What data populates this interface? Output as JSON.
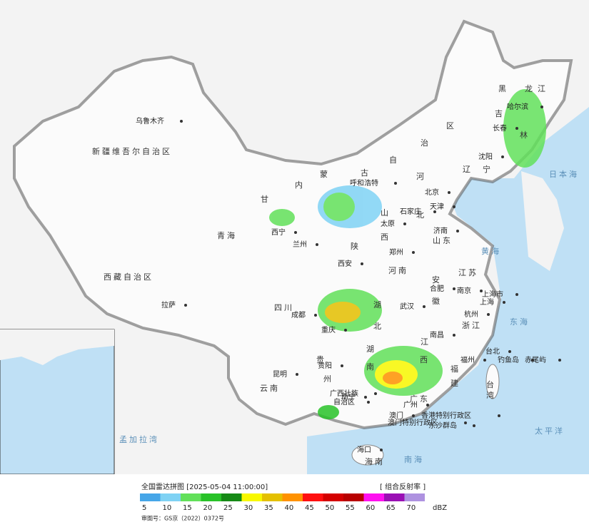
{
  "map": {
    "labels": [
      "乌鲁木齐",
      "新疆维吾尔自治区",
      "西藏自治区",
      "拉萨",
      "青海",
      "西宁",
      "兰州",
      "甘",
      "内",
      "蒙",
      "古",
      "自",
      "治",
      "区",
      "呼和浩特",
      "北京",
      "天津",
      "石家庄",
      "太原",
      "山",
      "西",
      "济南",
      "山东",
      "郑州",
      "河南",
      "西安",
      "陕",
      "四川",
      "成都",
      "重庆",
      "湖",
      "北",
      "武汉",
      "安",
      "徽",
      "合肥",
      "南京",
      "江苏",
      "上海市",
      "上海",
      "杭州",
      "浙江",
      "南昌",
      "江",
      "西",
      "福州",
      "福",
      "建",
      "湖",
      "南",
      "贵阳",
      "贵",
      "州",
      "云南",
      "昆明",
      "广西壮族",
      "自治区",
      "南宁",
      "广东",
      "广州",
      "澳门",
      "香港特别行政区",
      "澳门特别行政区",
      "东沙群岛",
      "钓鱼岛",
      "赤尾屿",
      "台北",
      "台",
      "湾",
      "海口",
      "海南",
      "黑",
      "龙",
      "江",
      "哈尔滨",
      "长春",
      "吉",
      "林",
      "沈阳",
      "辽",
      "宁",
      "河",
      "北",
      "日本海",
      "黄海",
      "东海",
      "太平洋",
      "南海",
      "孟加拉湾"
    ]
  },
  "legend": {
    "title": "全国雷达拼图 [2025-05-04 11:00:00]",
    "product": "[ 组合反射率 ]",
    "unit": "dBZ",
    "ticks": [
      5,
      10,
      15,
      20,
      25,
      30,
      35,
      40,
      45,
      50,
      55,
      60,
      65,
      70
    ],
    "colors": [
      "#46a6e8",
      "#7fd2f4",
      "#62e05a",
      "#28c228",
      "#168a16",
      "#f8f800",
      "#e4c000",
      "#ff9200",
      "#ff1010",
      "#d40000",
      "#b80000",
      "#ff10f0",
      "#9a10b4",
      "#ae92e0"
    ]
  },
  "footer": {
    "approval": "审图号：GS京（2022）0372号"
  }
}
